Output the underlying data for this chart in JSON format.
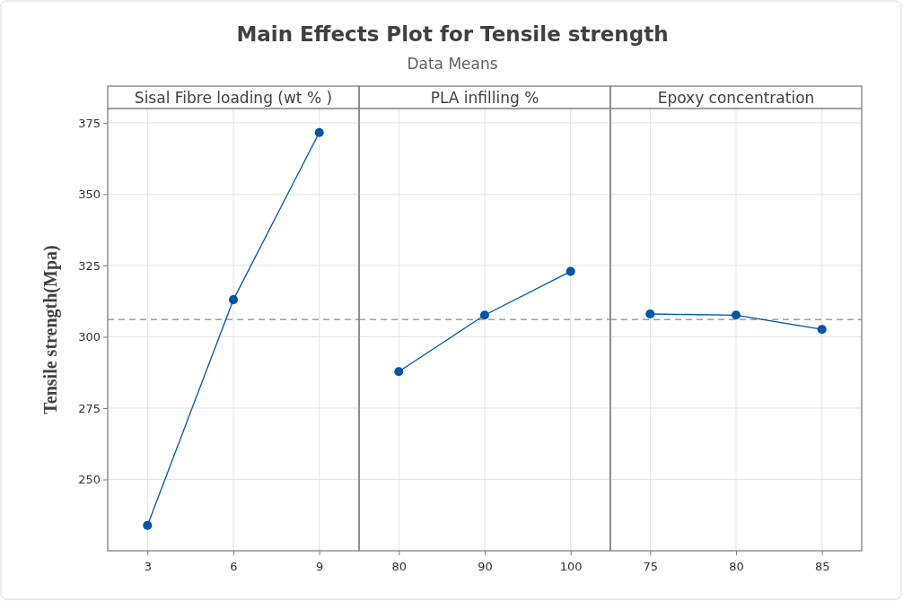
{
  "chart_data": [
    {
      "type": "line",
      "title": "Main Effects Plot for Tensile strength",
      "ylabel": "Tensile strength(Mpa)",
      "xlabel": "Sisal Fibre loading (wt % )",
      "categories": [
        "3",
        "6",
        "9"
      ],
      "values": [
        233.9,
        313.0,
        371.6
      ],
      "color": "#0054a6",
      "ylim": [
        225,
        380
      ],
      "yticks": [
        250,
        275,
        300,
        325,
        350,
        375
      ],
      "grid": true,
      "marker": "circle",
      "ref_lines": [
        {
          "axis": "y",
          "value": 306,
          "color": "#a0a0a0",
          "line_style": "dashed"
        }
      ]
    },
    {
      "type": "line",
      "subtitle": "Data Means",
      "xlabel": "PLA infilling %",
      "categories": [
        "80",
        "90",
        "100"
      ],
      "values": [
        287.8,
        307.6,
        322.9
      ],
      "color": "#0054a6",
      "ylim": [
        225,
        380
      ],
      "yticks": [
        250,
        275,
        300,
        325,
        350,
        375
      ],
      "grid": true,
      "marker": "circle",
      "tick_labels": "x",
      "ref_lines": [
        {
          "axis": "y",
          "value": 306,
          "color": "#a0a0a0",
          "line_style": "dashed"
        }
      ]
    },
    {
      "type": "line",
      "xlabel": "Epoxy concentration",
      "categories": [
        "75",
        "80",
        "85"
      ],
      "values": [
        308.0,
        307.6,
        302.6
      ],
      "color": "#0054a6",
      "ylim": [
        225,
        380
      ],
      "yticks": [
        250,
        275,
        300,
        325,
        350,
        375
      ],
      "grid": true,
      "marker": "circle",
      "tick_labels": "x",
      "ref_lines": [
        {
          "axis": "y",
          "value": 306,
          "color": "#a0a0a0",
          "line_style": "dashed"
        }
      ]
    }
  ]
}
